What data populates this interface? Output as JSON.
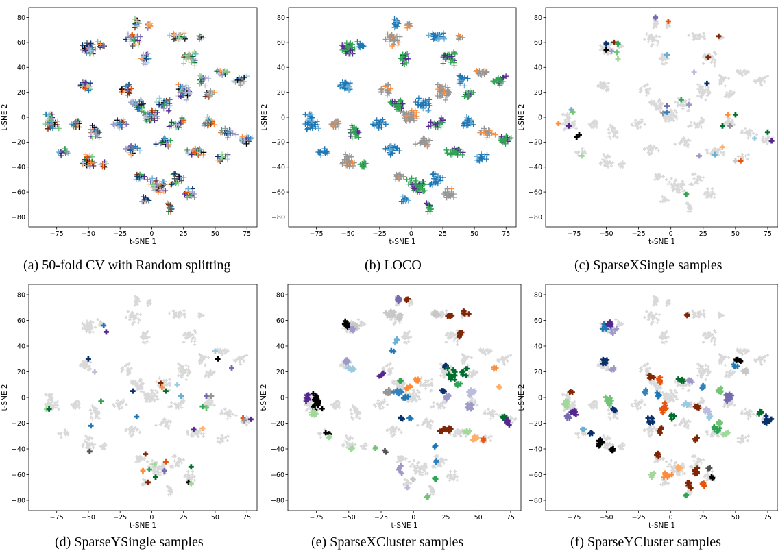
{
  "palette": [
    "#1f77b4",
    "#08306b",
    "#3182bd",
    "#6baed6",
    "#9ecae1",
    "#000000",
    "#525252",
    "#969696",
    "#c7c7c7",
    "#e6550d",
    "#fd8d3c",
    "#fdae6b",
    "#7f2704",
    "#006d2c",
    "#31a354",
    "#74c476",
    "#a1d99b",
    "#54278f",
    "#756bb1",
    "#9e9ac8",
    "#bcbddc"
  ],
  "background_color": "#d9d9d9",
  "chart_data": [
    {
      "id": "a",
      "type": "scatter",
      "caption": "(a) 50-fold CV with Random splitting",
      "xlabel": "t-SNE 1",
      "ylabel": "t-SNE 2",
      "xlim": [
        -97,
        83
      ],
      "ylim": [
        -88,
        88
      ],
      "xticks": [
        -75,
        -50,
        -25,
        0,
        25,
        50,
        75
      ],
      "yticks": [
        -80,
        -60,
        -40,
        -20,
        0,
        20,
        40,
        60,
        80
      ],
      "marker": "plus",
      "highlight": "all-points-mixed-colors"
    },
    {
      "id": "b",
      "type": "scatter",
      "caption": "(b) LOCO",
      "xlabel": "t-SNE 1",
      "ylabel": "t-SNE 2",
      "xlim": [
        -97,
        83
      ],
      "ylim": [
        -88,
        88
      ],
      "xticks": [
        -75,
        -50,
        -25,
        0,
        25,
        50,
        75
      ],
      "yticks": [
        -80,
        -60,
        -40,
        -20,
        0,
        20,
        40,
        60,
        80
      ],
      "marker": "plus",
      "highlight": "all-points-colored-by-cluster"
    },
    {
      "id": "c",
      "type": "scatter",
      "caption": "(c) SparseXSingle samples",
      "xlabel": "t-SNE 1",
      "ylabel": "t-SNE 2",
      "xlim": [
        -97,
        83
      ],
      "ylim": [
        -88,
        88
      ],
      "xticks": [
        -75,
        -50,
        -25,
        0,
        25,
        50,
        75
      ],
      "yticks": [
        -80,
        -60,
        -40,
        -20,
        0,
        20,
        40,
        60,
        80
      ],
      "marker": "plus",
      "highlight": "single-samples",
      "points": [
        [
          -12,
          80,
          18
        ],
        [
          -2,
          77,
          9
        ],
        [
          -50,
          59,
          1
        ],
        [
          -44,
          60,
          12
        ],
        [
          -41,
          59,
          14
        ],
        [
          -50,
          54,
          5
        ],
        [
          -46,
          53,
          19
        ],
        [
          -42,
          52,
          15
        ],
        [
          -41,
          47,
          16
        ],
        [
          -3,
          50,
          3
        ],
        [
          37,
          65,
          12
        ],
        [
          29,
          48,
          12
        ],
        [
          18,
          36,
          20
        ],
        [
          28,
          27,
          1
        ],
        [
          -3,
          9,
          18
        ],
        [
          8,
          14,
          14
        ],
        [
          -6,
          3,
          7
        ],
        [
          -3,
          4,
          2
        ],
        [
          14,
          10,
          19
        ],
        [
          -77,
          6,
          3
        ],
        [
          -76,
          4,
          15
        ],
        [
          -87,
          -5,
          10
        ],
        [
          -79,
          -7,
          17
        ],
        [
          -71,
          -14,
          5
        ],
        [
          -73,
          -16,
          5
        ],
        [
          -69,
          -31,
          16
        ],
        [
          44,
          2,
          10
        ],
        [
          50,
          2,
          13
        ],
        [
          40,
          -7,
          13
        ],
        [
          46,
          -7,
          7
        ],
        [
          75,
          -12,
          13
        ],
        [
          65,
          -17,
          4
        ],
        [
          78,
          -19,
          17
        ],
        [
          40,
          -24,
          11
        ],
        [
          34,
          -30,
          3
        ],
        [
          22,
          -31,
          19
        ],
        [
          50,
          -35,
          8
        ],
        [
          54,
          -35,
          9
        ],
        [
          12,
          -62,
          14
        ]
      ]
    },
    {
      "id": "d",
      "type": "scatter",
      "caption": "(d) SparseYSingle samples",
      "xlabel": "t-SNE 1",
      "ylabel": "t-SNE 2",
      "xlim": [
        -97,
        83
      ],
      "ylim": [
        -88,
        88
      ],
      "xticks": [
        -75,
        -50,
        -25,
        0,
        25,
        50,
        75
      ],
      "yticks": [
        -80,
        -60,
        -40,
        -20,
        0,
        20,
        40,
        60,
        80
      ],
      "marker": "plus",
      "highlight": "single-samples",
      "points": [
        [
          -38,
          56,
          0
        ],
        [
          -36,
          51,
          17
        ],
        [
          -50,
          30,
          1
        ],
        [
          -45,
          20,
          20
        ],
        [
          -83,
          -9,
          16
        ],
        [
          -81,
          -9,
          13
        ],
        [
          -40,
          -3,
          14
        ],
        [
          -48,
          -22,
          0
        ],
        [
          -49,
          -42,
          6
        ],
        [
          -15,
          5,
          1
        ],
        [
          -12,
          -15,
          0
        ],
        [
          7,
          11,
          12
        ],
        [
          8,
          8,
          10
        ],
        [
          11,
          5,
          13
        ],
        [
          20,
          10,
          4
        ],
        [
          23,
          1,
          3
        ],
        [
          43,
          1,
          18
        ],
        [
          47,
          1,
          7
        ],
        [
          40,
          -7,
          14
        ],
        [
          43,
          -8,
          15
        ],
        [
          33,
          -25,
          17
        ],
        [
          40,
          -24,
          11
        ],
        [
          50,
          36,
          4
        ],
        [
          52,
          30,
          5
        ],
        [
          63,
          23,
          18
        ],
        [
          72,
          -16,
          9
        ],
        [
          73,
          -18,
          7
        ],
        [
          78,
          -17,
          17
        ],
        [
          -5,
          -44,
          12
        ],
        [
          -7,
          -57,
          10
        ],
        [
          -2,
          -56,
          14
        ],
        [
          2,
          -52,
          16
        ],
        [
          3,
          -62,
          13
        ],
        [
          -3,
          -66,
          12
        ],
        [
          11,
          -50,
          9
        ],
        [
          10,
          -57,
          18
        ],
        [
          31,
          -54,
          13
        ],
        [
          29,
          -66,
          5
        ],
        [
          31,
          -67,
          16
        ]
      ]
    },
    {
      "id": "e",
      "type": "scatter",
      "caption": "(e) SparseXCluster samples",
      "xlabel": "t-SNE 1",
      "ylabel": "t-SNE 2",
      "xlim": [
        -97,
        83
      ],
      "ylim": [
        -88,
        88
      ],
      "xticks": [
        -75,
        -50,
        -25,
        0,
        25,
        50,
        75
      ],
      "yticks": [
        -80,
        -60,
        -40,
        -20,
        0,
        20,
        40,
        60,
        80
      ],
      "marker": "plus",
      "highlight": "clusters",
      "clusters": [
        [
          -12,
          77,
          18,
          3,
          5,
          8
        ],
        [
          -5,
          76,
          12,
          3,
          3,
          4
        ],
        [
          -52,
          56,
          5,
          4,
          4,
          10
        ],
        [
          -45,
          55,
          8,
          4,
          4,
          10
        ],
        [
          -48,
          53,
          19,
          3,
          3,
          6
        ],
        [
          -18,
          65,
          8,
          5,
          4,
          8
        ],
        [
          -10,
          62,
          8,
          4,
          3,
          6
        ],
        [
          18,
          65,
          8,
          6,
          2,
          8
        ],
        [
          28,
          64,
          12,
          4,
          3,
          6
        ],
        [
          40,
          66,
          12,
          3,
          2,
          5
        ],
        [
          36,
          49,
          12,
          4,
          3,
          6
        ],
        [
          -13,
          44,
          3,
          3,
          3,
          4
        ],
        [
          -16,
          35,
          0,
          3,
          3,
          3
        ],
        [
          -52,
          28,
          19,
          4,
          3,
          6
        ],
        [
          -48,
          22,
          4,
          5,
          5,
          8
        ],
        [
          -25,
          18,
          17,
          3,
          3,
          4
        ],
        [
          -10,
          13,
          14,
          2,
          2,
          4
        ],
        [
          -5,
          8,
          10,
          5,
          3,
          6
        ],
        [
          2,
          14,
          10,
          3,
          2,
          4
        ],
        [
          -20,
          4,
          7,
          5,
          3,
          8
        ],
        [
          -12,
          4,
          2,
          5,
          3,
          8
        ],
        [
          -5,
          0,
          0,
          3,
          3,
          4
        ],
        [
          25,
          25,
          1,
          2,
          3,
          5
        ],
        [
          30,
          18,
          13,
          5,
          8,
          12
        ],
        [
          40,
          20,
          13,
          3,
          5,
          6
        ],
        [
          35,
          10,
          14,
          3,
          3,
          5
        ],
        [
          23,
          5,
          1,
          2,
          3,
          4
        ],
        [
          27,
          0,
          19,
          3,
          3,
          5
        ],
        [
          45,
          4,
          20,
          4,
          4,
          8
        ],
        [
          44,
          -8,
          19,
          4,
          4,
          8
        ],
        [
          63,
          23,
          10,
          2,
          2,
          3
        ],
        [
          66,
          8,
          11,
          2,
          3,
          3
        ],
        [
          -75,
          -3,
          5,
          5,
          10,
          20
        ],
        [
          -77,
          -12,
          16,
          5,
          4,
          8
        ],
        [
          -82,
          0,
          17,
          4,
          5,
          8
        ],
        [
          -67,
          -28,
          5,
          3,
          2,
          3
        ],
        [
          -65,
          -31,
          16,
          2,
          2,
          3
        ],
        [
          -48,
          -40,
          16,
          2,
          2,
          3
        ],
        [
          -10,
          -16,
          1,
          4,
          2,
          5
        ],
        [
          -3,
          -16,
          0,
          2,
          2,
          3
        ],
        [
          25,
          -25,
          12,
          8,
          3,
          12
        ],
        [
          42,
          -27,
          16,
          4,
          3,
          6
        ],
        [
          49,
          -32,
          11,
          4,
          3,
          6
        ],
        [
          54,
          -33,
          9,
          2,
          2,
          3
        ],
        [
          70,
          -15,
          13,
          3,
          3,
          5
        ],
        [
          73,
          -19,
          17,
          3,
          3,
          5
        ],
        [
          -10,
          -56,
          19,
          4,
          4,
          6
        ],
        [
          17,
          -38,
          0,
          2,
          2,
          2
        ],
        [
          17,
          -50,
          2,
          2,
          3,
          3
        ],
        [
          17,
          -64,
          14,
          3,
          3,
          4
        ],
        [
          11,
          -77,
          15,
          2,
          2,
          3
        ],
        [
          -1,
          -64,
          8,
          2,
          2,
          2
        ],
        [
          -21,
          -42,
          6,
          2,
          2,
          2
        ],
        [
          -30,
          -40,
          15,
          2,
          2,
          2
        ],
        [
          -5,
          -70,
          20,
          2,
          2,
          2
        ]
      ]
    },
    {
      "id": "f",
      "type": "scatter",
      "caption": "(f) SparseYCluster samples",
      "xlabel": "t-SNE 1",
      "ylabel": "t-SNE 2",
      "xlim": [
        -97,
        83
      ],
      "ylim": [
        -88,
        88
      ],
      "xticks": [
        -75,
        -50,
        -25,
        0,
        25,
        50,
        75
      ],
      "yticks": [
        -80,
        -60,
        -40,
        -20,
        0,
        20,
        40,
        60,
        80
      ],
      "marker": "plus",
      "highlight": "clusters",
      "clusters": [
        [
          -52,
          55,
          0,
          4,
          4,
          8
        ],
        [
          -47,
          57,
          17,
          3,
          3,
          6
        ],
        [
          -44,
          52,
          19,
          3,
          3,
          5
        ],
        [
          13,
          64,
          12,
          2,
          1,
          3
        ],
        [
          -52,
          28,
          1,
          3,
          4,
          8
        ],
        [
          -45,
          22,
          19,
          3,
          3,
          5
        ],
        [
          -78,
          5,
          12,
          3,
          2,
          3
        ],
        [
          -80,
          -5,
          16,
          4,
          5,
          10
        ],
        [
          -75,
          -12,
          17,
          4,
          4,
          8
        ],
        [
          -80,
          -15,
          18,
          3,
          3,
          5
        ],
        [
          -48,
          -3,
          15,
          4,
          5,
          10
        ],
        [
          -44,
          -10,
          1,
          3,
          3,
          5
        ],
        [
          -55,
          -35,
          5,
          4,
          5,
          12
        ],
        [
          -45,
          -40,
          5,
          3,
          3,
          5
        ],
        [
          -68,
          -25,
          3,
          2,
          2,
          3
        ],
        [
          -62,
          -28,
          1,
          2,
          2,
          3
        ],
        [
          -15,
          16,
          12,
          3,
          3,
          6
        ],
        [
          -8,
          14,
          9,
          3,
          3,
          6
        ],
        [
          -20,
          5,
          2,
          3,
          3,
          5
        ],
        [
          -10,
          2,
          0,
          3,
          3,
          6
        ],
        [
          -5,
          -8,
          9,
          4,
          5,
          8
        ],
        [
          -15,
          -18,
          1,
          4,
          4,
          8
        ],
        [
          -8,
          -25,
          12,
          3,
          3,
          5
        ],
        [
          2,
          -15,
          13,
          3,
          3,
          5
        ],
        [
          8,
          13,
          13,
          3,
          3,
          5
        ],
        [
          15,
          12,
          19,
          3,
          3,
          5
        ],
        [
          25,
          8,
          2,
          3,
          3,
          5
        ],
        [
          38,
          5,
          15,
          3,
          3,
          6
        ],
        [
          45,
          0,
          18,
          4,
          4,
          8
        ],
        [
          12,
          -5,
          4,
          3,
          3,
          5
        ],
        [
          20,
          -8,
          12,
          3,
          3,
          5
        ],
        [
          30,
          -15,
          4,
          3,
          3,
          5
        ],
        [
          35,
          -25,
          14,
          4,
          3,
          8
        ],
        [
          43,
          -28,
          16,
          3,
          3,
          5
        ],
        [
          20,
          -32,
          12,
          3,
          3,
          5
        ],
        [
          50,
          25,
          0,
          3,
          3,
          5
        ],
        [
          52,
          30,
          5,
          3,
          3,
          5
        ],
        [
          58,
          20,
          8,
          3,
          3,
          5
        ],
        [
          70,
          -12,
          13,
          3,
          3,
          5
        ],
        [
          75,
          -18,
          1,
          4,
          4,
          8
        ],
        [
          -10,
          -45,
          12,
          3,
          3,
          6
        ],
        [
          -3,
          -60,
          10,
          4,
          4,
          8
        ],
        [
          6,
          -55,
          11,
          3,
          3,
          6
        ],
        [
          14,
          -68,
          12,
          4,
          4,
          8
        ],
        [
          20,
          -58,
          12,
          4,
          4,
          8
        ],
        [
          25,
          -68,
          9,
          3,
          3,
          5
        ],
        [
          12,
          -76,
          14,
          2,
          2,
          3
        ],
        [
          30,
          -55,
          6,
          2,
          2,
          3
        ],
        [
          32,
          -62,
          5,
          2,
          2,
          3
        ],
        [
          -15,
          -60,
          16,
          3,
          3,
          5
        ],
        [
          28,
          -10,
          20,
          3,
          3,
          5
        ],
        [
          38,
          -20,
          15,
          3,
          3,
          5
        ]
      ]
    }
  ]
}
